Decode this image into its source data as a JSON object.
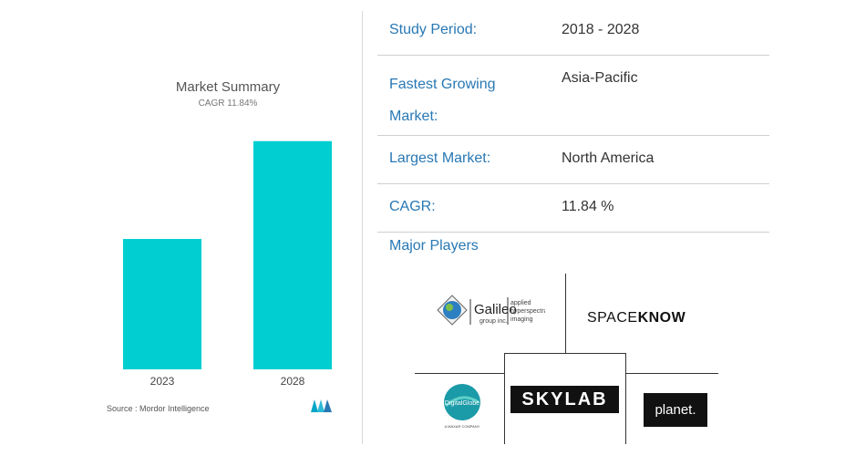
{
  "chart_data": {
    "type": "bar",
    "title": "Market Summary",
    "subtitle": "CAGR 11.84%",
    "categories": [
      "2023",
      "2028"
    ],
    "values": [
      1.0,
      1.75
    ],
    "ylim": [
      0,
      2
    ],
    "colors": {
      "bar": "#00CED1"
    },
    "grid": false
  },
  "source": "Source : Mordor Intelligence",
  "summary": {
    "study_period": {
      "label": "Study Period:",
      "value": "2018 - 2028"
    },
    "fastest_growing": {
      "label_line1": "Fastest Growing",
      "label_line2": "Market:",
      "value": "Asia-Pacific"
    },
    "largest_market": {
      "label": "Largest Market:",
      "value": "North America"
    },
    "cagr": {
      "label": "CAGR:",
      "value": "11.84 %"
    },
    "major_players_label": "Major Players"
  },
  "players": {
    "galileo": {
      "name": "Galileo",
      "sub": "group inc.",
      "tag1": "applied",
      "tag2": "hyperspectral",
      "tag3": "imaging"
    },
    "spaceknow": {
      "light": "SPACE",
      "bold": "KNOW"
    },
    "skylab": "SKYLAB",
    "planet": "planet.",
    "digitalglobe": {
      "name": "DigitalGlobe",
      "sub": "A MAXAR COMPANY"
    }
  },
  "colors": {
    "accent_blue": "#2878b4",
    "bar_teal": "#00CED1"
  }
}
